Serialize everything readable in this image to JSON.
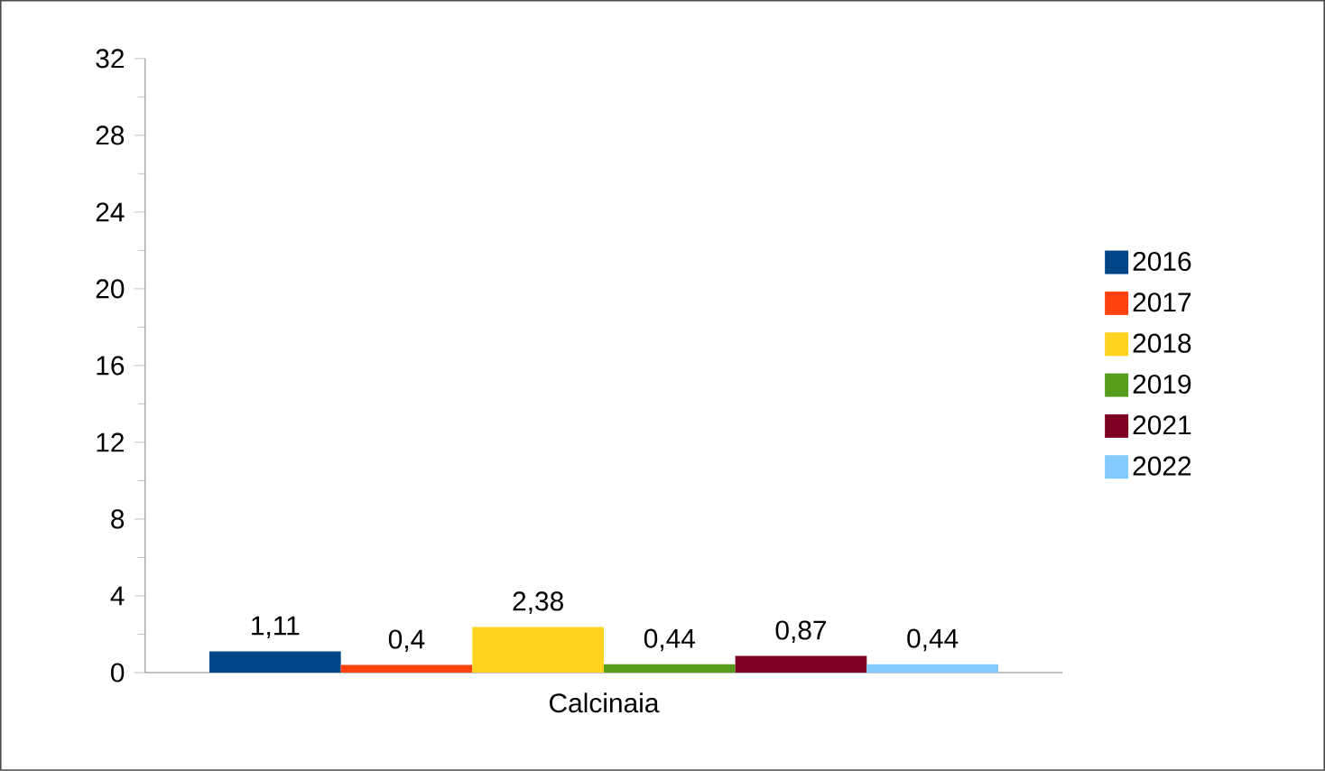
{
  "chart_data": {
    "type": "bar",
    "categories": [
      "Calcinaia"
    ],
    "series": [
      {
        "name": "2016",
        "color": "#004586",
        "values": [
          1.11
        ],
        "value_labels": [
          "1,11"
        ]
      },
      {
        "name": "2017",
        "color": "#ff420e",
        "values": [
          0.4
        ],
        "value_labels": [
          "0,4"
        ]
      },
      {
        "name": "2018",
        "color": "#ffd320",
        "values": [
          2.38
        ],
        "value_labels": [
          "2,38"
        ]
      },
      {
        "name": "2019",
        "color": "#579d1c",
        "values": [
          0.44
        ],
        "value_labels": [
          "0,44"
        ]
      },
      {
        "name": "2021",
        "color": "#7e0021",
        "values": [
          0.87
        ],
        "value_labels": [
          "0,87"
        ]
      },
      {
        "name": "2022",
        "color": "#83caff",
        "values": [
          0.44
        ],
        "value_labels": [
          "0,44"
        ]
      }
    ],
    "ylim": [
      0,
      32
    ],
    "yticks": [
      0,
      4,
      8,
      12,
      16,
      20,
      24,
      28,
      32
    ],
    "grid": false,
    "legend": "right"
  }
}
